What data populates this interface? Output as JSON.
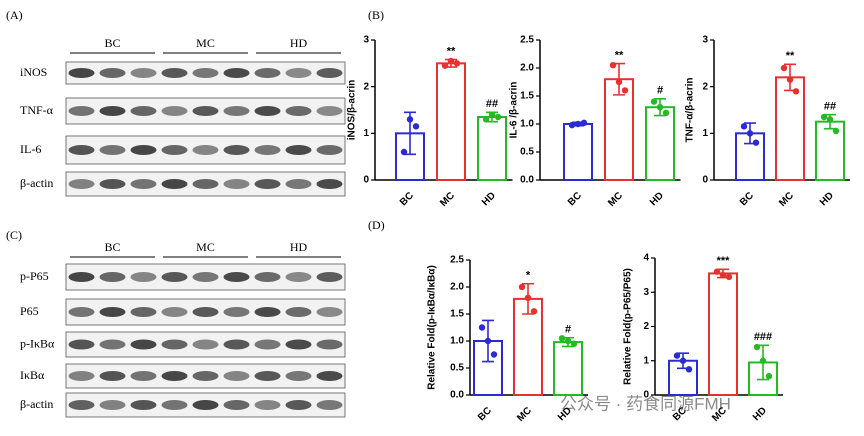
{
  "blots": [
    {
      "label": "(A)",
      "groups": [
        "BC",
        "MC",
        "HD"
      ],
      "rows": [
        "iNOS",
        "TNF-α",
        "IL-6",
        "β-actin"
      ]
    },
    {
      "label": "(C)",
      "groups": [
        "BC",
        "MC",
        "HD"
      ],
      "rows": [
        "p-P65",
        "P65",
        "p-IκBα",
        "IκBα",
        "β-actin"
      ]
    }
  ],
  "panel_labels": [
    "(B)",
    "(D)"
  ],
  "watermark": "公众号 · 药食同源FMH",
  "chart_data": [
    {
      "type": "bar",
      "y_label": "iNOS/β-acrin",
      "categories": [
        "BC",
        "MC",
        "HD"
      ],
      "colors": [
        "#2b2bd6",
        "#e83030",
        "#22bb22"
      ],
      "values": [
        1.0,
        2.5,
        1.35
      ],
      "errors": [
        0.45,
        0.08,
        0.1
      ],
      "points": [
        [
          0.6,
          1.3,
          1.15
        ],
        [
          2.45,
          2.55,
          2.5
        ],
        [
          1.3,
          1.4,
          1.35
        ]
      ],
      "labels": [
        null,
        "**",
        "##"
      ],
      "ylim": [
        0,
        3
      ],
      "yticks": [
        0,
        1,
        2,
        3
      ]
    },
    {
      "type": "bar",
      "y_label": "IL-6 /β-acrin",
      "categories": [
        "BC",
        "MC",
        "HD"
      ],
      "colors": [
        "#2b2bd6",
        "#e83030",
        "#22bb22"
      ],
      "values": [
        1.0,
        1.8,
        1.3
      ],
      "errors": [
        0.03,
        0.28,
        0.15
      ],
      "points": [
        [
          0.98,
          1.0,
          1.02
        ],
        [
          2.05,
          1.75,
          1.6
        ],
        [
          1.4,
          1.3,
          1.2
        ]
      ],
      "labels": [
        null,
        "**",
        "#"
      ],
      "ylim": [
        0,
        2.5
      ],
      "yticks": [
        {
          "value": 0,
          "label": "0.0"
        },
        {
          "value": 0.5,
          "label": "0.5"
        },
        {
          "value": 1,
          "label": "1.0"
        },
        {
          "value": 1.5,
          "label": "1.5"
        },
        {
          "value": 2,
          "label": "2.0"
        },
        {
          "value": 2.5,
          "label": "2.5"
        }
      ]
    },
    {
      "type": "bar",
      "y_label": "TNF-α/β-acrin",
      "categories": [
        "BC",
        "MC",
        "HD"
      ],
      "colors": [
        "#2b2bd6",
        "#e83030",
        "#22bb22"
      ],
      "values": [
        1.0,
        2.2,
        1.25
      ],
      "errors": [
        0.22,
        0.28,
        0.15
      ],
      "points": [
        [
          1.15,
          1.0,
          0.8
        ],
        [
          2.4,
          2.15,
          1.9
        ],
        [
          1.35,
          1.3,
          1.05
        ]
      ],
      "labels": [
        null,
        "**",
        "##"
      ],
      "ylim": [
        0,
        3
      ],
      "yticks": [
        0,
        1,
        2,
        3
      ]
    },
    {
      "type": "bar",
      "y_label": "Relative Fold(p-IκBα/IκBα)",
      "categories": [
        "BC",
        "MC",
        "HD"
      ],
      "colors": [
        "#2b2bd6",
        "#e83030",
        "#22bb22"
      ],
      "values": [
        1.0,
        1.78,
        0.98
      ],
      "errors": [
        0.38,
        0.28,
        0.08
      ],
      "points": [
        [
          1.25,
          1.0,
          0.75
        ],
        [
          2.0,
          1.8,
          1.55
        ],
        [
          1.05,
          1.0,
          0.95
        ]
      ],
      "labels": [
        null,
        "*",
        "#"
      ],
      "ylim": [
        0,
        2.5
      ],
      "yticks": [
        {
          "value": 0,
          "label": "0.0"
        },
        {
          "value": 0.5,
          "label": "0.5"
        },
        {
          "value": 1,
          "label": "1.0"
        },
        {
          "value": 1.5,
          "label": "1.5"
        },
        {
          "value": 2,
          "label": "2.0"
        },
        {
          "value": 2.5,
          "label": "2.5"
        }
      ]
    },
    {
      "type": "bar",
      "y_label": "Relative Fold(p-P65/P65)",
      "categories": [
        "BC",
        "MC",
        "HD"
      ],
      "colors": [
        "#2b2bd6",
        "#e83030",
        "#22bb22"
      ],
      "values": [
        1.0,
        3.55,
        0.95
      ],
      "errors": [
        0.22,
        0.12,
        0.5
      ],
      "points": [
        [
          1.15,
          1.0,
          0.75
        ],
        [
          3.6,
          3.5,
          3.45
        ],
        [
          1.4,
          1.0,
          0.55
        ]
      ],
      "labels": [
        null,
        "***",
        "###"
      ],
      "ylim": [
        0,
        4
      ],
      "yticks": [
        0,
        1,
        2,
        3,
        4
      ]
    }
  ]
}
